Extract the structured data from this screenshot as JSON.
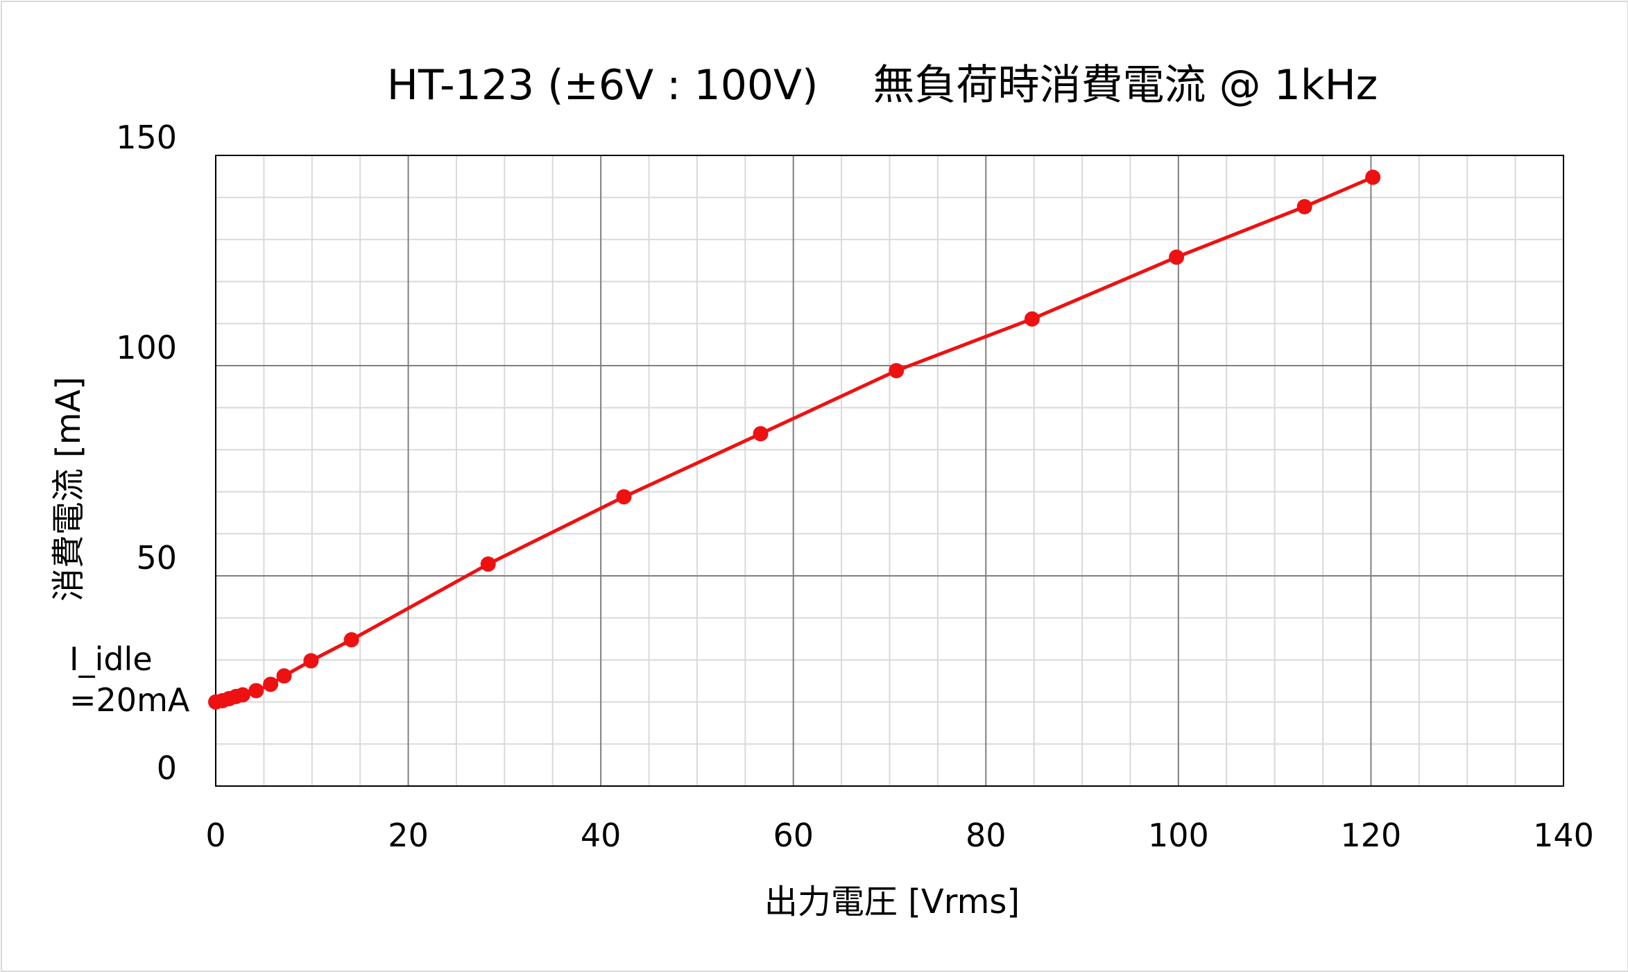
{
  "chart_data": {
    "type": "line",
    "title": "HT-123 (±6V : 100V)　 無負荷時消費電流 @ 1kHz",
    "xlabel": "出力電圧 [Vrms]",
    "ylabel": "消費電流 [mA]",
    "xlim": [
      0,
      140
    ],
    "ylim": [
      0,
      150
    ],
    "x_major_ticks": [
      0,
      20,
      40,
      60,
      80,
      100,
      120,
      140
    ],
    "y_major_ticks": [
      0,
      50,
      100,
      150
    ],
    "x_tick_labels": [
      "0",
      "20",
      "40",
      "60",
      "80",
      "100",
      "120",
      "140"
    ],
    "y_tick_labels": [
      "0",
      "50",
      "100",
      "150"
    ],
    "x_minor_step": 5,
    "y_minor_step": 10,
    "grid": true,
    "annotation": [
      "I_idle",
      "=20mA"
    ],
    "colors": {
      "series": "#ee1111",
      "major_grid": "#7f7f7f",
      "minor_grid": "#d9d9d9",
      "plot_border": "#000000"
    },
    "series": [
      {
        "x": [
          0,
          0.7,
          1.4,
          2.1,
          2.8,
          4.2,
          5.7,
          7.1,
          9.9,
          14.1,
          28.3,
          42.4,
          56.6,
          70.7,
          84.8,
          99.8,
          113.1,
          120.2
        ],
        "y": [
          20,
          20.3,
          20.8,
          21.3,
          21.7,
          22.7,
          24.2,
          26.2,
          29.8,
          34.8,
          52.8,
          68.8,
          83.8,
          98.8,
          111.1,
          125.8,
          137.8,
          144.8
        ]
      }
    ]
  }
}
